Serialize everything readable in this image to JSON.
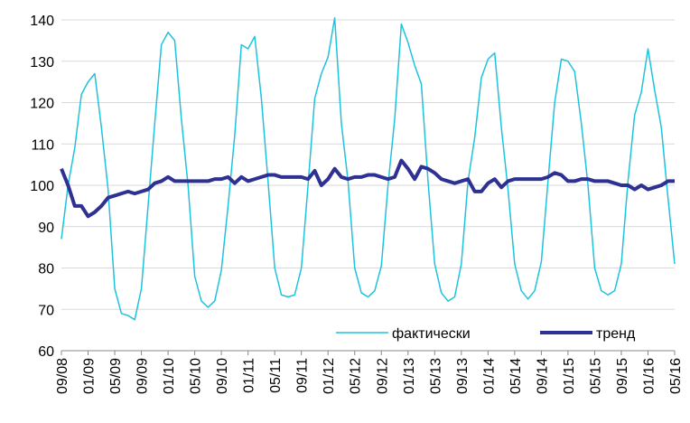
{
  "chart_data": {
    "type": "line",
    "title": "",
    "xlabel": "",
    "ylabel": "",
    "ylim": [
      60,
      140
    ],
    "yticks": [
      60,
      70,
      80,
      90,
      100,
      110,
      120,
      130,
      140
    ],
    "grid": "horizontal",
    "legend_position": "bottom-right",
    "x_tick_labels": [
      "09/08",
      "01/09",
      "05/09",
      "09/09",
      "01/10",
      "05/10",
      "09/10",
      "01/11",
      "05/11",
      "09/11",
      "01/12",
      "05/12",
      "09/12",
      "01/13",
      "05/13",
      "09/13",
      "01/14",
      "05/14",
      "09/14",
      "01/15",
      "05/15",
      "09/15",
      "01/16",
      "05/16"
    ],
    "x": [
      "09/08",
      "10/08",
      "11/08",
      "12/08",
      "01/09",
      "02/09",
      "03/09",
      "04/09",
      "05/09",
      "06/09",
      "07/09",
      "08/09",
      "09/09",
      "10/09",
      "11/09",
      "12/09",
      "01/10",
      "02/10",
      "03/10",
      "04/10",
      "05/10",
      "06/10",
      "07/10",
      "08/10",
      "09/10",
      "10/10",
      "11/10",
      "12/10",
      "01/11",
      "02/11",
      "03/11",
      "04/11",
      "05/11",
      "06/11",
      "07/11",
      "08/11",
      "09/11",
      "10/11",
      "11/11",
      "12/11",
      "01/12",
      "02/12",
      "03/12",
      "04/12",
      "05/12",
      "06/12",
      "07/12",
      "08/12",
      "09/12",
      "10/12",
      "11/12",
      "12/12",
      "01/13",
      "02/13",
      "03/13",
      "04/13",
      "05/13",
      "06/13",
      "07/13",
      "08/13",
      "09/13",
      "10/13",
      "11/13",
      "12/13",
      "01/14",
      "02/14",
      "03/14",
      "04/14",
      "05/14",
      "06/14",
      "07/14",
      "08/14",
      "09/14",
      "10/14",
      "11/14",
      "12/14",
      "01/15",
      "02/15",
      "03/15",
      "04/15",
      "05/15",
      "06/15",
      "07/15",
      "08/15",
      "09/15",
      "10/15",
      "11/15",
      "12/15",
      "01/16",
      "02/16",
      "03/16",
      "04/16",
      "05/16"
    ],
    "series": [
      {
        "name": "фактически",
        "color": "#1ec3dd",
        "values": [
          87,
          100,
          109,
          122,
          125,
          127,
          114,
          99,
          75,
          69,
          68.5,
          67.5,
          75,
          95,
          115,
          134,
          137,
          135,
          116,
          100,
          78,
          72,
          70.5,
          72,
          79.5,
          95,
          112,
          134,
          133,
          136,
          121,
          101,
          80,
          73.5,
          73,
          73.5,
          80,
          100,
          121,
          127,
          131,
          140.5,
          115,
          101,
          80,
          74,
          73,
          74.5,
          80.5,
          100,
          116,
          139,
          134.5,
          129,
          124.5,
          101,
          81,
          74,
          72,
          73,
          81,
          101,
          111.5,
          126,
          130.5,
          132,
          114,
          99,
          81,
          74.5,
          72.5,
          74.5,
          81.5,
          101,
          120,
          130.5,
          130,
          127.5,
          115,
          100,
          80,
          74.5,
          73.5,
          74.5,
          81,
          101,
          117,
          122.5,
          133,
          123,
          114,
          97,
          81
        ]
      },
      {
        "name": "тренд",
        "color": "#2e3192",
        "values": [
          104,
          100,
          95,
          95,
          92.5,
          93.5,
          95,
          97,
          97.5,
          98,
          98.5,
          98,
          98.5,
          99,
          100.5,
          101,
          102,
          101,
          101,
          101,
          101,
          101,
          101,
          101.5,
          101.5,
          102,
          100.5,
          102,
          101,
          101.5,
          102,
          102.5,
          102.5,
          102,
          102,
          102,
          102,
          101.5,
          103.5,
          100,
          101.5,
          104,
          102,
          101.5,
          102,
          102,
          102.5,
          102.5,
          102,
          101.5,
          102,
          106,
          104,
          101.5,
          104.5,
          104,
          103,
          101.5,
          101,
          100.5,
          101,
          101.5,
          98.5,
          98.5,
          100.5,
          101.5,
          99.5,
          101,
          101.5,
          101.5,
          101.5,
          101.5,
          101.5,
          102,
          103,
          102.5,
          101,
          101,
          101.5,
          101.5,
          101,
          101,
          101,
          100.5,
          100,
          100,
          99,
          100,
          99,
          99.5,
          100,
          101,
          101
        ]
      }
    ]
  }
}
